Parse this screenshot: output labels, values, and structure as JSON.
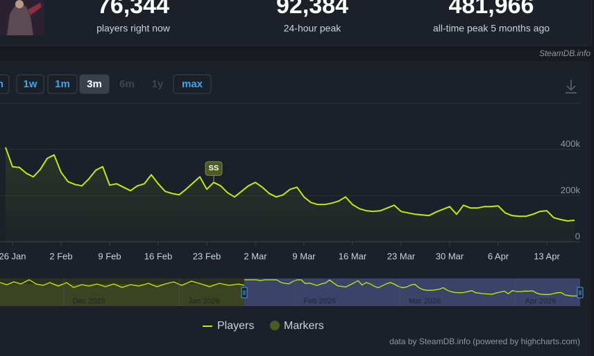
{
  "stats": [
    {
      "value": "76,344",
      "label": "players right now"
    },
    {
      "value": "92,384",
      "label": "24-hour peak"
    },
    {
      "value": "481,966",
      "label": "all-time peak 5 months ago"
    }
  ],
  "source": "SteamDB.info",
  "range_buttons": [
    "h",
    "1w",
    "1m",
    "3m",
    "6m",
    "1y",
    "max"
  ],
  "chart_data": {
    "type": "line",
    "categories": [
      "25 Jan",
      "26 Jan",
      "27 Jan",
      "28 Jan",
      "29 Jan",
      "30 Jan",
      "31 Jan",
      "1 Feb",
      "2 Feb",
      "3 Feb",
      "4 Feb",
      "5 Feb",
      "6 Feb",
      "7 Feb",
      "8 Feb",
      "9 Feb",
      "10 Feb",
      "11 Feb",
      "12 Feb",
      "13 Feb",
      "14 Feb",
      "15 Feb",
      "16 Feb",
      "17 Feb",
      "18 Feb",
      "19 Feb",
      "20 Feb",
      "21 Feb",
      "22 Feb",
      "23 Feb",
      "24 Feb",
      "25 Feb",
      "26 Feb",
      "27 Feb",
      "28 Feb",
      "1 Mar",
      "2 Mar",
      "3 Mar",
      "4 Mar",
      "5 Mar",
      "6 Mar",
      "7 Mar",
      "8 Mar",
      "9 Mar",
      "10 Mar",
      "11 Mar",
      "12 Mar",
      "13 Mar",
      "14 Mar",
      "15 Mar",
      "16 Mar",
      "17 Mar",
      "18 Mar",
      "19 Mar",
      "20 Mar",
      "21 Mar",
      "22 Mar",
      "23 Mar",
      "24 Mar",
      "25 Mar",
      "26 Mar",
      "27 Mar",
      "28 Mar",
      "29 Mar",
      "30 Mar",
      "31 Mar",
      "1 Apr",
      "2 Apr",
      "3 Apr",
      "4 Apr",
      "5 Apr",
      "6 Apr",
      "7 Apr",
      "8 Apr",
      "9 Apr",
      "10 Apr",
      "11 Apr",
      "12 Apr",
      "13 Apr",
      "14 Apr",
      "15 Apr",
      "16 Apr",
      "17 Apr"
    ],
    "series": [
      {
        "name": "Players",
        "color": "#beee11",
        "values": [
          409000,
          325000,
          322000,
          296000,
          281000,
          313000,
          361000,
          376000,
          301000,
          260000,
          248000,
          242000,
          272000,
          310000,
          325000,
          245000,
          251000,
          236000,
          221000,
          242000,
          251000,
          290000,
          251000,
          218000,
          209000,
          203000,
          227000,
          254000,
          281000,
          227000,
          257000,
          242000,
          212000,
          194000,
          218000,
          242000,
          257000,
          236000,
          209000,
          194000,
          203000,
          227000,
          236000,
          194000,
          170000,
          161000,
          161000,
          167000,
          176000,
          194000,
          161000,
          143000,
          134000,
          131000,
          134000,
          146000,
          158000,
          131000,
          125000,
          119000,
          116000,
          113000,
          128000,
          140000,
          152000,
          119000,
          158000,
          146000,
          146000,
          152000,
          152000,
          155000,
          125000,
          113000,
          110000,
          110000,
          119000,
          131000,
          134000,
          104000,
          96000,
          90000,
          93000
        ]
      }
    ],
    "markers": {
      "name": "Markers",
      "color": "#4c5a24",
      "items": [
        {
          "label": "SS",
          "x": "24 Feb"
        }
      ]
    },
    "ylim": [
      0,
      600000
    ],
    "yticks": [
      {
        "value": 0,
        "label": "0"
      },
      {
        "value": 200000,
        "label": "200k"
      },
      {
        "value": 400000,
        "label": "400k"
      },
      {
        "value": 600000,
        "label": ""
      }
    ],
    "grid": true,
    "navigator_labels": [
      "Dec 2025",
      "Jan 2026",
      "Feb 2026",
      "Mar 2026",
      "Apr 2026"
    ],
    "credit": "data by SteamDB.info (powered by highcharts.com)"
  }
}
